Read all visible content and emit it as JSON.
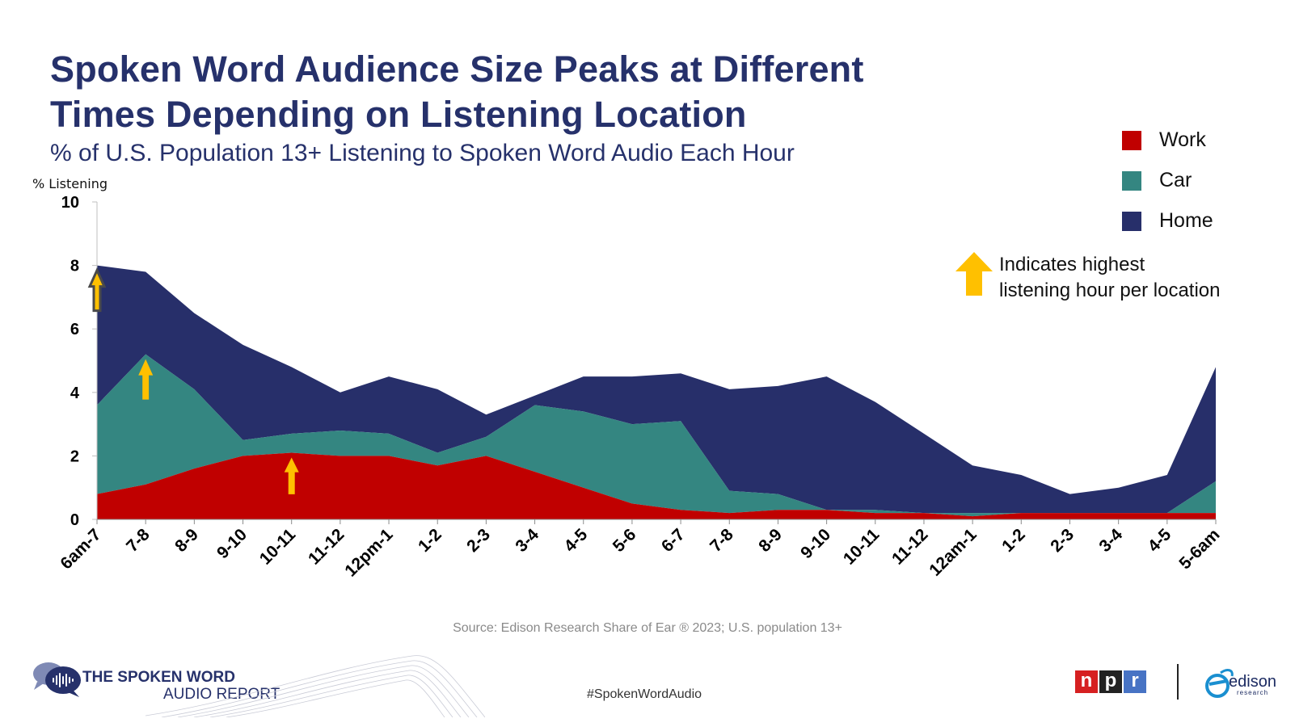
{
  "title_lines": [
    "Spoken Word Audience Size Peaks at Different",
    "Times Depending on Listening Location"
  ],
  "subtitle": "% of U.S. Population 13+ Listening to Spoken Word Audio Each Hour",
  "legend": [
    {
      "label": "Work",
      "color": "#c00000"
    },
    {
      "label": "Car",
      "color": "#348681"
    },
    {
      "label": "Home",
      "color": "#272f6a"
    }
  ],
  "note": {
    "lines": [
      "Indicates highest",
      "listening hour per location"
    ],
    "arrow_color": "#ffc000"
  },
  "source": "Source: Edison Research Share of Ear ® 2023; U.S. population 13+",
  "hashtag": "#SpokenWordAudio",
  "brand": {
    "line1": "THE SPOKEN WORD",
    "line2": "AUDIO REPORT"
  },
  "npr_letters": [
    {
      "letter": "n",
      "color": "#d62021"
    },
    {
      "letter": "p",
      "color": "#222222"
    },
    {
      "letter": "r",
      "color": "#4773c4"
    }
  ],
  "edison": {
    "name": "edison",
    "sub": "research"
  },
  "chart_data": {
    "type": "area",
    "stacked": true,
    "ylabel": "% Listening",
    "ylim": [
      0,
      10
    ],
    "yticks": [
      0,
      2,
      4,
      6,
      8,
      10
    ],
    "categories": [
      "6am-7",
      "7-8",
      "8-9",
      "9-10",
      "10-11",
      "11-12",
      "12pm-1",
      "1-2",
      "2-3",
      "3-4",
      "4-5",
      "5-6",
      "6-7",
      "7-8",
      "8-9",
      "9-10",
      "10-11",
      "11-12",
      "12am-1",
      "1-2",
      "2-3",
      "3-4",
      "4-5",
      "5-6am"
    ],
    "series": [
      {
        "name": "Work",
        "color": "#c00000",
        "values": [
          0.8,
          1.1,
          1.6,
          2.0,
          2.1,
          2.0,
          2.0,
          1.7,
          2.0,
          1.5,
          1.0,
          0.5,
          0.3,
          0.2,
          0.3,
          0.3,
          0.2,
          0.2,
          0.1,
          0.2,
          0.2,
          0.2,
          0.2,
          0.2
        ]
      },
      {
        "name": "Car",
        "color": "#348681",
        "values": [
          2.8,
          4.1,
          2.5,
          0.5,
          0.6,
          0.8,
          0.7,
          0.4,
          0.6,
          2.1,
          2.4,
          2.5,
          2.8,
          0.7,
          0.5,
          0.0,
          0.1,
          0.0,
          0.1,
          0.0,
          0.0,
          0.0,
          0.0,
          1.0
        ]
      },
      {
        "name": "Home",
        "color": "#272f6a",
        "values": [
          4.4,
          2.6,
          2.4,
          3.0,
          2.1,
          1.2,
          1.8,
          2.0,
          0.7,
          0.3,
          1.1,
          1.5,
          1.5,
          3.2,
          3.4,
          4.2,
          3.4,
          2.5,
          1.5,
          1.2,
          0.6,
          0.8,
          1.2,
          3.6
        ]
      }
    ],
    "peaks": [
      {
        "series": "Home",
        "category": "6am-7"
      },
      {
        "series": "Car",
        "category": "7-8"
      },
      {
        "series": "Work",
        "category": "10-11"
      }
    ]
  }
}
